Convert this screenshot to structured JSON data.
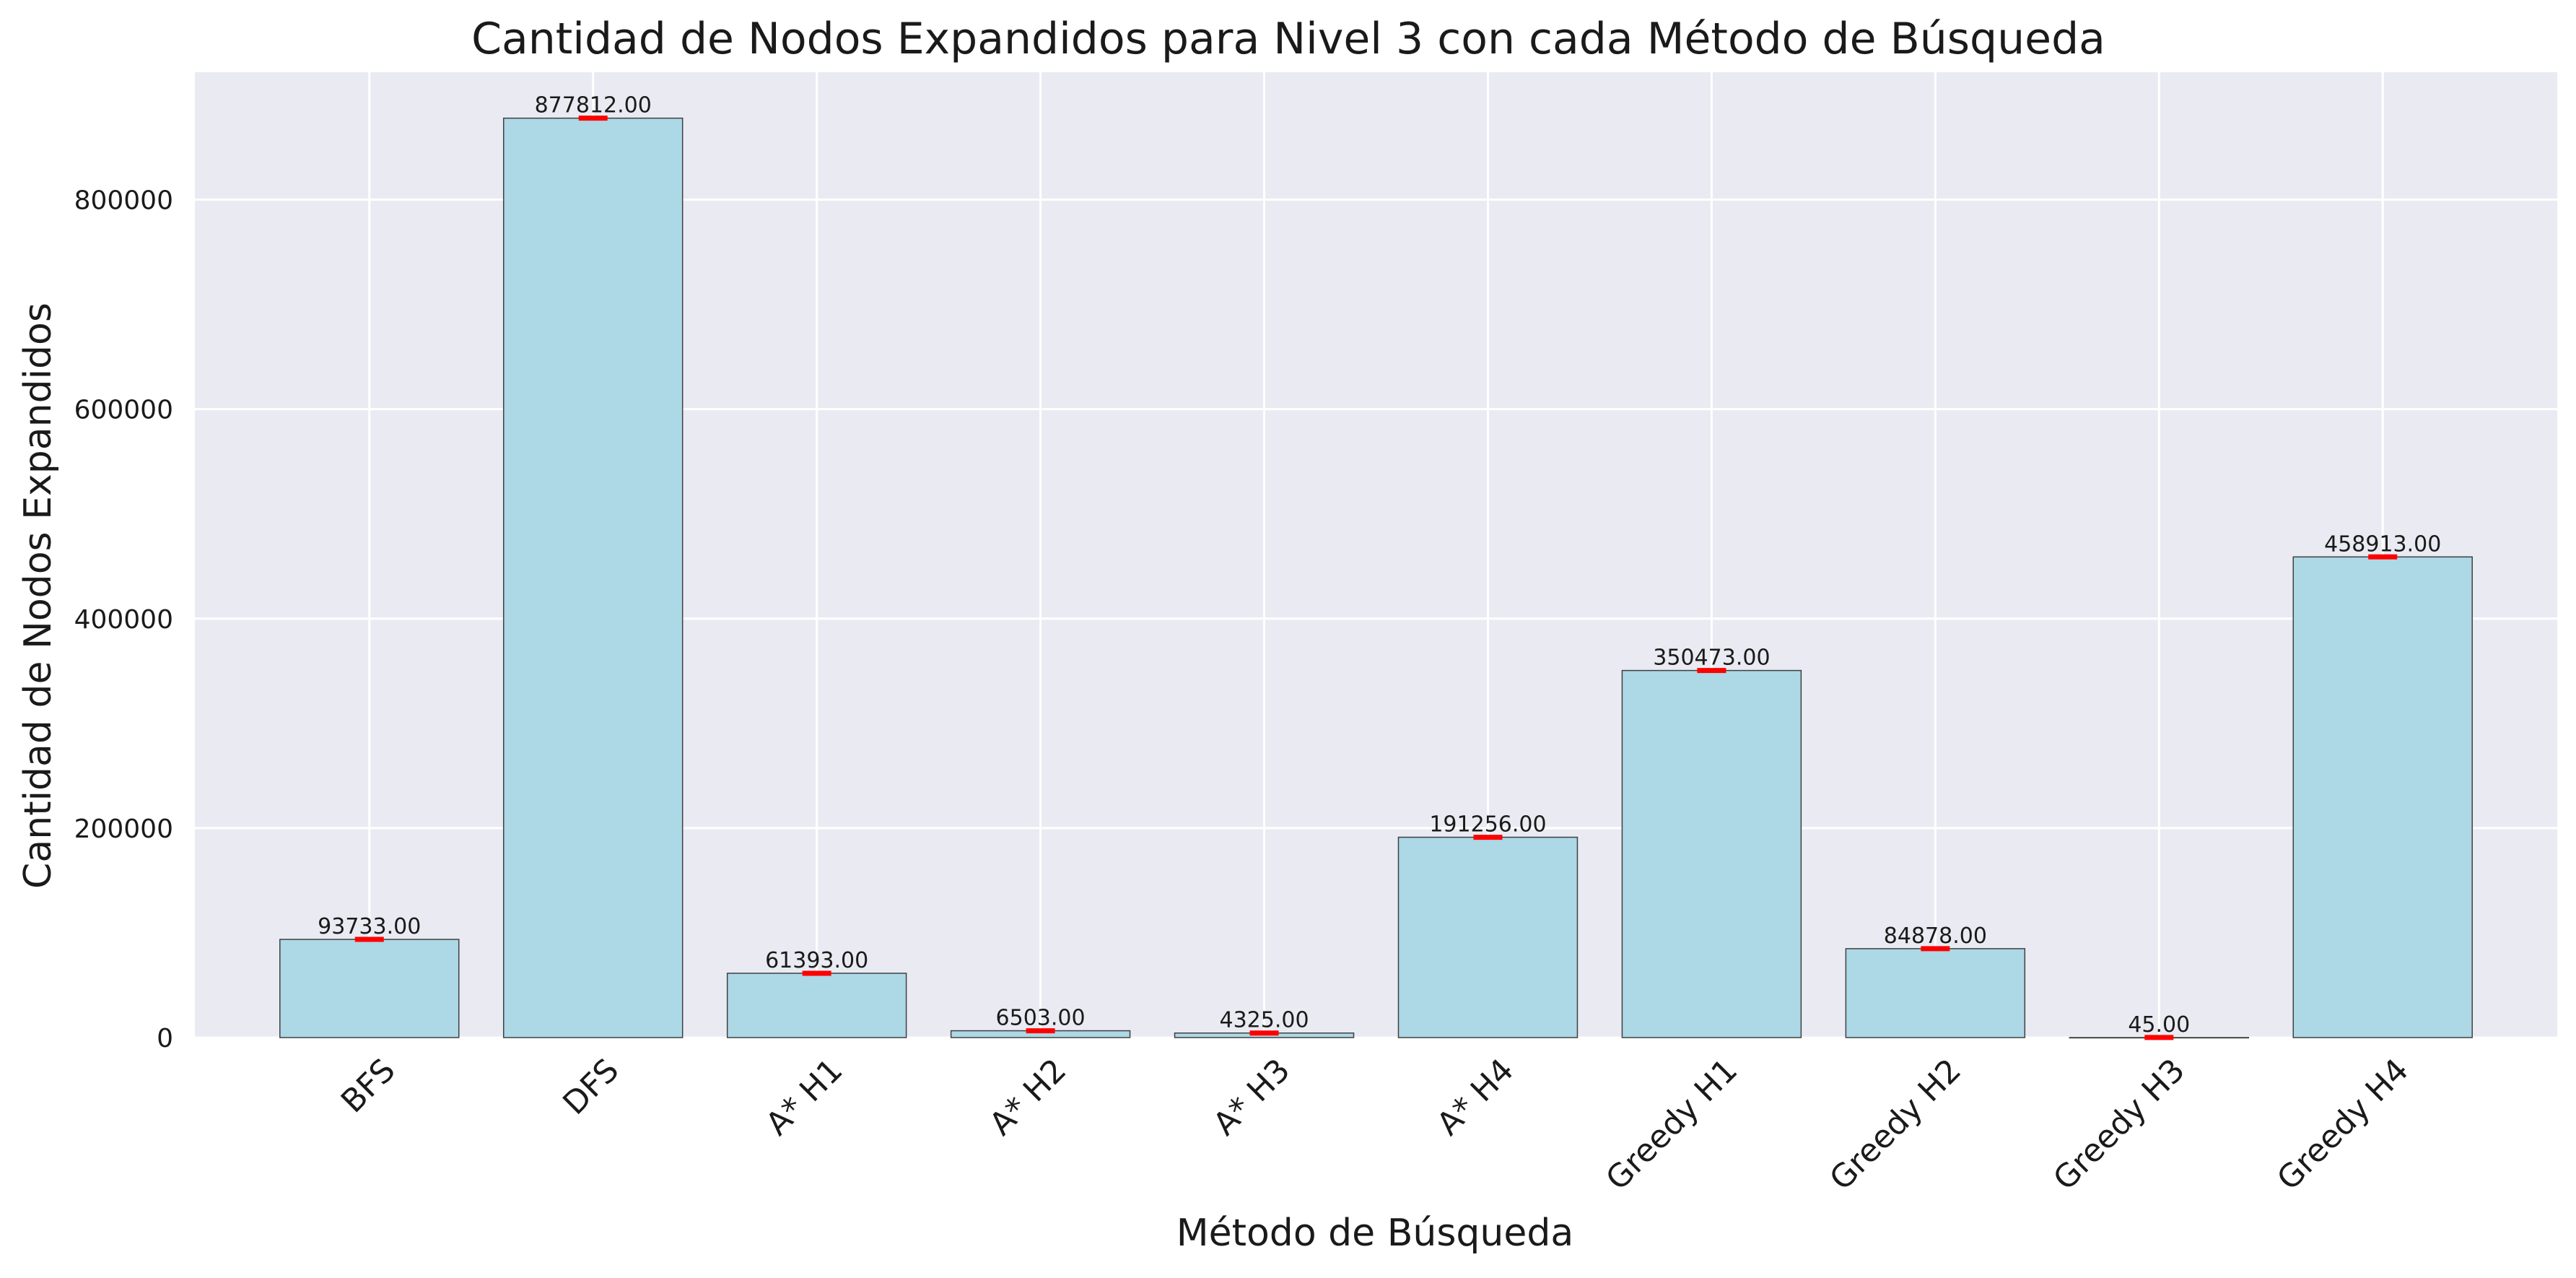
{
  "chart_data": {
    "type": "bar",
    "title": "Cantidad de Nodos Expandidos  para Nivel 3 con cada Método de Búsqueda",
    "xlabel": "Método de Búsqueda",
    "ylabel": "Cantidad de Nodos Expandidos",
    "categories": [
      "BFS",
      "DFS",
      "A* H1",
      "A* H2",
      "A* H3",
      "A* H4",
      "Greedy H1",
      "Greedy H2",
      "Greedy H3",
      "Greedy H4"
    ],
    "values": [
      93733,
      877812,
      61393,
      6503,
      4325,
      191256,
      350473,
      84878,
      45,
      458913
    ],
    "data_labels": [
      "93733.00",
      "877812.00",
      "61393.00",
      "6503.00",
      "4325.00",
      "191256.00",
      "350473.00",
      "84878.00",
      "45.00",
      "458913.00"
    ],
    "ylim": [
      0,
      921702
    ],
    "yticks": [
      0,
      200000,
      400000,
      600000,
      800000
    ],
    "ytick_labels": [
      "0",
      "200000",
      "400000",
      "600000",
      "800000"
    ],
    "grid": true,
    "colors": {
      "bar": "#add8e6",
      "bar_edge": "#404040",
      "error_marker": "#ff0000",
      "plot_background": "#eaeaf2",
      "grid": "#ffffff"
    }
  }
}
